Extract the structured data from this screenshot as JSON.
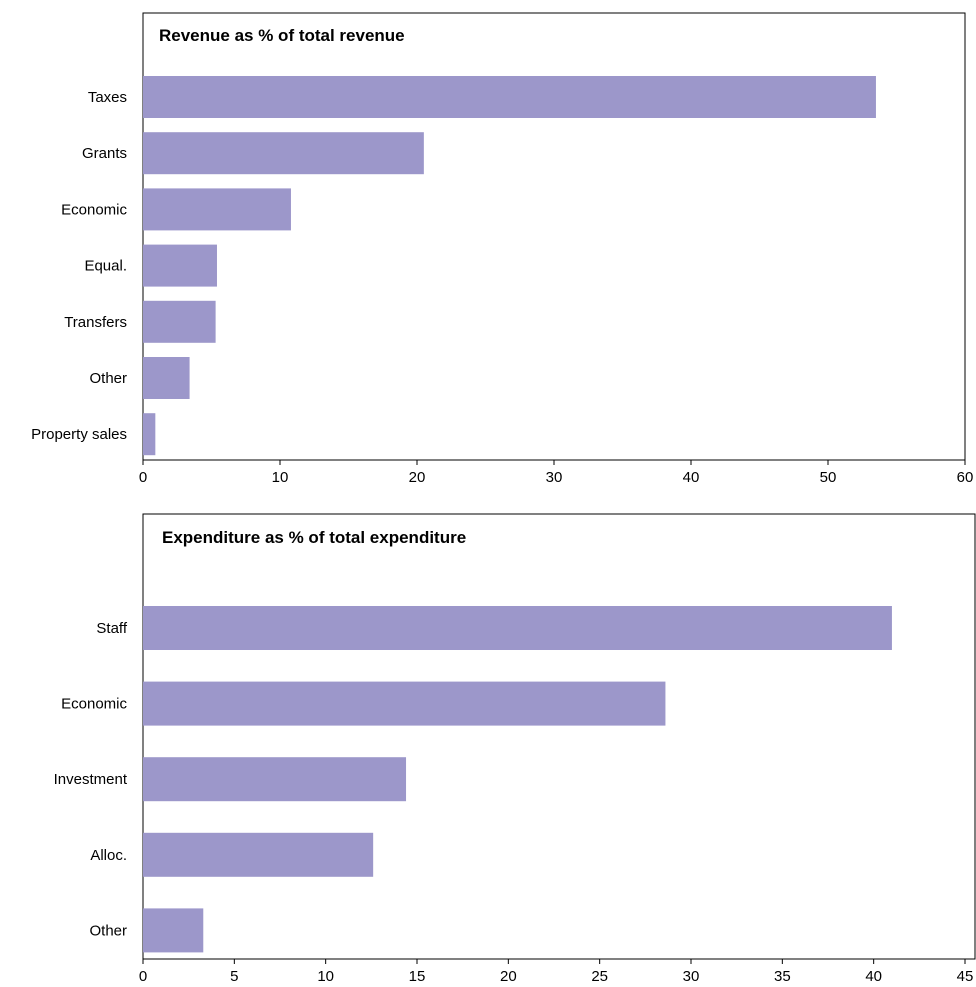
{
  "colors": {
    "bar": "#9c97ca",
    "frame": "#000000",
    "background": "#ffffff"
  },
  "chart_data": [
    {
      "type": "bar",
      "orientation": "horizontal",
      "title": "Revenue as % of total revenue",
      "xlabel": "",
      "ylabel": "",
      "categories": [
        "Taxes",
        "Grants",
        "Economic",
        "Equal.",
        "Transfers",
        "Other",
        "Property sales"
      ],
      "values": [
        53.5,
        20.5,
        10.8,
        5.4,
        5.3,
        3.4,
        0.9
      ],
      "xlim": [
        0,
        60
      ],
      "xticks": [
        0,
        10,
        20,
        30,
        40,
        50,
        60
      ],
      "grid": false,
      "legend": "none"
    },
    {
      "type": "bar",
      "orientation": "horizontal",
      "title": "Expenditure as % of total expenditure",
      "xlabel": "",
      "ylabel": "",
      "categories": [
        "Staff",
        "Economic",
        "Investment",
        "Alloc.",
        "Other"
      ],
      "values": [
        41.0,
        28.6,
        14.4,
        12.6,
        3.3
      ],
      "xlim": [
        0,
        45
      ],
      "xticks": [
        0,
        5,
        10,
        15,
        20,
        25,
        30,
        35,
        40,
        45
      ],
      "grid": false,
      "legend": "none"
    }
  ]
}
